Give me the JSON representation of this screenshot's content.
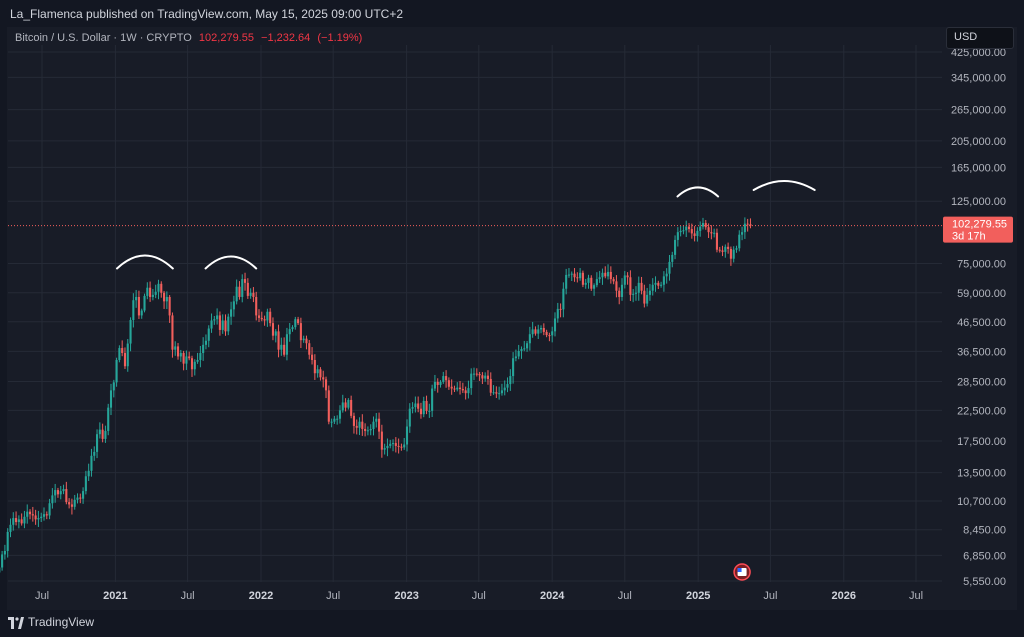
{
  "header": {
    "published": "La_Flamenca published on TradingView.com, May 15, 2025 09:00 UTC+2"
  },
  "legend": {
    "symbol": "Bitcoin / U.S. Dollar · 1W · CRYPTO",
    "price": "102,279.55",
    "change": "−1,232.64",
    "change_pct": "(−1.19%)"
  },
  "currency_button": "USD",
  "price_tag": {
    "price": "102,279.55",
    "countdown": "3d 17h"
  },
  "footer": {
    "brand": "TradingView"
  },
  "colors": {
    "background": "#131722",
    "panel": "#181c27",
    "up": "#26a69a",
    "down": "#f25f5c",
    "price_line": "#f25f5c",
    "grid": "#252a36"
  },
  "chart_data": {
    "type": "candlestick",
    "scale": "log",
    "interval": "1W",
    "grid": true,
    "ylim": [
      5550,
      425000
    ],
    "y_ticks": [
      {
        "label": "425,000.00",
        "value": 425000
      },
      {
        "label": "345,000.00",
        "value": 345000
      },
      {
        "label": "265,000.00",
        "value": 265000
      },
      {
        "label": "205,000.00",
        "value": 205000
      },
      {
        "label": "165,000.00",
        "value": 165000
      },
      {
        "label": "125,000.00",
        "value": 125000
      },
      {
        "label": "75,000.00",
        "value": 75000
      },
      {
        "label": "59,000.00",
        "value": 59000
      },
      {
        "label": "46,500.00",
        "value": 46500
      },
      {
        "label": "36,500.00",
        "value": 36500
      },
      {
        "label": "28,500.00",
        "value": 28500
      },
      {
        "label": "22,500.00",
        "value": 22500
      },
      {
        "label": "17,500.00",
        "value": 17500
      },
      {
        "label": "13,500.00",
        "value": 13500
      },
      {
        "label": "10,700.00",
        "value": 10700
      },
      {
        "label": "8,450.00",
        "value": 8450
      },
      {
        "label": "6,850.00",
        "value": 6850
      },
      {
        "label": "5,550.00",
        "value": 5550
      }
    ],
    "x_ticks": [
      {
        "label": "Jul",
        "date": "2020-07-01",
        "bold": false
      },
      {
        "label": "2021",
        "date": "2021-01-01",
        "bold": true
      },
      {
        "label": "Jul",
        "date": "2021-07-01",
        "bold": false
      },
      {
        "label": "2022",
        "date": "2022-01-01",
        "bold": true
      },
      {
        "label": "Jul",
        "date": "2022-07-01",
        "bold": false
      },
      {
        "label": "2023",
        "date": "2023-01-01",
        "bold": true
      },
      {
        "label": "Jul",
        "date": "2023-07-01",
        "bold": false
      },
      {
        "label": "2024",
        "date": "2024-01-01",
        "bold": true
      },
      {
        "label": "Jul",
        "date": "2024-07-01",
        "bold": false
      },
      {
        "label": "2025",
        "date": "2025-01-01",
        "bold": true
      },
      {
        "label": "Jul",
        "date": "2025-07-01",
        "bold": false
      },
      {
        "label": "2026",
        "date": "2026-01-01",
        "bold": true
      },
      {
        "label": "Jul",
        "date": "2026-07-01",
        "bold": false
      }
    ],
    "first_date": "2020-03-16",
    "last_price": 102279.55,
    "closes": [
      6200,
      6900,
      7100,
      8300,
      8800,
      9300,
      9000,
      9200,
      8900,
      9400,
      9800,
      9600,
      9500,
      9200,
      9300,
      9400,
      9600,
      9500,
      10500,
      11200,
      11700,
      11300,
      11600,
      11800,
      10600,
      10400,
      10200,
      10800,
      11000,
      10900,
      11600,
      13100,
      13700,
      15500,
      16000,
      18500,
      19200,
      17800,
      19000,
      23000,
      26500,
      28300,
      34000,
      37500,
      36000,
      32300,
      38900,
      47200,
      55500,
      57000,
      49000,
      51000,
      57500,
      61500,
      57000,
      58000,
      59500,
      63500,
      59000,
      55000,
      57000,
      49000,
      37000,
      38000,
      35000,
      36000,
      33000,
      35000,
      34500,
      31500,
      33500,
      34000,
      36000,
      38500,
      39800,
      44000,
      47000,
      47500,
      49000,
      43500,
      47000,
      43000,
      48500,
      51500,
      55000,
      62000,
      57000,
      66000,
      64000,
      57500,
      59000,
      57000,
      49000,
      48000,
      47500,
      47000,
      50500,
      46000,
      41500,
      43000,
      37000,
      38500,
      35500,
      42000,
      43800,
      44500,
      47500,
      46000,
      40000,
      40500,
      39000,
      35500,
      34000,
      30500,
      31500,
      29500,
      29000,
      26500,
      20500,
      20500,
      21000,
      21000,
      22500,
      24000,
      23000,
      24500,
      21500,
      19800,
      19500,
      20500,
      19300,
      19000,
      19100,
      19300,
      20500,
      21000,
      18900,
      16300,
      16500,
      16800,
      17100,
      17200,
      16800,
      16700,
      16600,
      17000,
      19700,
      22800,
      23100,
      23800,
      22800,
      21800,
      24300,
      22400,
      22400,
      26900,
      28400,
      27700,
      28400,
      29800,
      28800,
      27300,
      26900,
      26700,
      27100,
      26800,
      26500,
      25900,
      27000,
      30400,
      30400,
      30300,
      30000,
      29200,
      29900,
      29100,
      26000,
      26100,
      25800,
      25900,
      26500,
      27100,
      27900,
      29800,
      34500,
      35000,
      36600,
      37200,
      37400,
      39000,
      42000,
      43700,
      42200,
      43700,
      44200,
      42800,
      41700,
      41600,
      43000,
      47800,
      51700,
      51500,
      61000,
      68300,
      68500,
      69000,
      67000,
      66500,
      69500,
      63000,
      64000,
      66700,
      61000,
      62800,
      66000,
      67000,
      69500,
      67500,
      70000,
      66000,
      64800,
      60000,
      57000,
      63000,
      68000,
      67000,
      58000,
      58500,
      59000,
      64000,
      60000,
      54000,
      58000,
      60000,
      63000,
      64000,
      62500,
      63000,
      67500,
      69000,
      76000,
      80500,
      91000,
      97000,
      98000,
      98500,
      101500,
      99500,
      96000,
      94000,
      98000,
      101500,
      104500,
      101000,
      97000,
      96000,
      96500,
      84000,
      83500,
      82500,
      86000,
      84500,
      78000,
      84000,
      85000,
      95000,
      97000,
      104000,
      103500,
      102279.55
    ],
    "annotations": [
      "arc",
      "arc",
      "arc",
      "arc"
    ],
    "last_price_line": 102279.55
  }
}
